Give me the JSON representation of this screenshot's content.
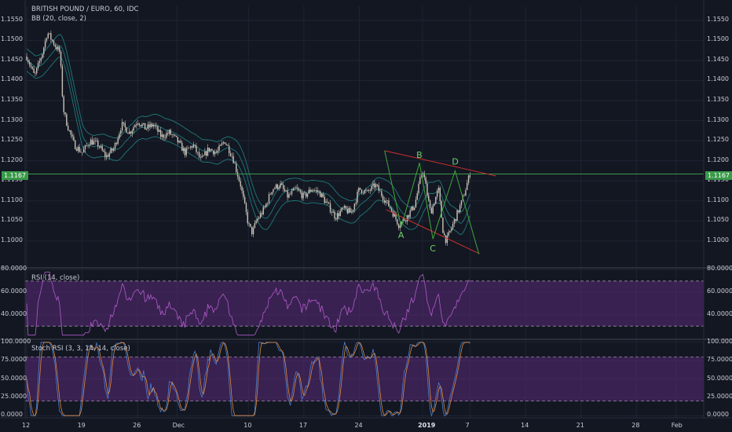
{
  "header": {
    "symbol": "BRITISH POUND / EURO, 60, IDC",
    "bb_indicator": "BB (20, close, 2)"
  },
  "current_price": "1.1167",
  "colors": {
    "background": "#131722",
    "grid": "#1f2433",
    "candle": "#c9c3b8",
    "bb_line": "#1f7a7a",
    "rsi_line": "#b05bc8",
    "rsi_band": "#5a2a78",
    "stoch_k": "#4a7fd0",
    "stoch_d": "#e08a3c",
    "channel": "#d0302c",
    "pattern": "#3fa83a",
    "price_line": "#3a9a4a",
    "pattern_label": "#6fd36a"
  },
  "chart_data": [
    {
      "type": "line",
      "name": "price",
      "y_ticks": [
        "1.1550",
        "1.1500",
        "1.1450",
        "1.1400",
        "1.1350",
        "1.1300",
        "1.1250",
        "1.1200",
        "1.1150",
        "1.1100",
        "1.1050",
        "1.1000"
      ],
      "y_tick_values": [
        1.155,
        1.15,
        1.145,
        1.14,
        1.135,
        1.13,
        1.125,
        1.12,
        1.115,
        1.11,
        1.105,
        1.1
      ],
      "ylim": [
        1.0935,
        1.1585
      ],
      "x_ticks": [
        "12",
        "19",
        "26",
        "Dec",
        "10",
        "17",
        "24",
        "2019",
        "7",
        "14",
        "21",
        "28",
        "Feb"
      ],
      "x_tick_days": [
        0,
        7,
        14,
        19,
        28,
        35,
        42,
        50,
        56,
        63,
        70,
        77,
        82
      ],
      "xlim": [
        -0.2,
        85.5
      ],
      "close_anchors": [
        [
          0,
          1.146
        ],
        [
          1,
          1.141
        ],
        [
          2,
          1.147
        ],
        [
          2.6,
          1.152
        ],
        [
          3.5,
          1.149
        ],
        [
          4.2,
          1.147
        ],
        [
          4.6,
          1.133
        ],
        [
          5.1,
          1.129
        ],
        [
          6,
          1.124
        ],
        [
          7,
          1.122
        ],
        [
          8,
          1.125
        ],
        [
          9,
          1.124
        ],
        [
          10,
          1.121
        ],
        [
          11,
          1.123
        ],
        [
          12,
          1.129
        ],
        [
          13,
          1.127
        ],
        [
          14,
          1.13
        ],
        [
          15,
          1.128
        ],
        [
          16,
          1.129
        ],
        [
          17,
          1.126
        ],
        [
          18,
          1.127
        ],
        [
          19,
          1.125
        ],
        [
          20,
          1.122
        ],
        [
          21,
          1.124
        ],
        [
          22,
          1.12
        ],
        [
          23,
          1.123
        ],
        [
          24,
          1.122
        ],
        [
          25,
          1.125
        ],
        [
          26,
          1.121
        ],
        [
          27,
          1.114
        ],
        [
          28,
          1.104
        ],
        [
          28.5,
          1.102
        ],
        [
          29,
          1.105
        ],
        [
          30,
          1.108
        ],
        [
          31,
          1.113
        ],
        [
          32,
          1.114
        ],
        [
          33,
          1.111
        ],
        [
          34,
          1.113
        ],
        [
          35,
          1.111
        ],
        [
          36,
          1.113
        ],
        [
          37,
          1.112
        ],
        [
          38,
          1.109
        ],
        [
          39,
          1.106
        ],
        [
          40,
          1.108
        ],
        [
          41,
          1.107
        ],
        [
          42,
          1.113
        ],
        [
          43,
          1.112
        ],
        [
          44,
          1.114
        ],
        [
          45,
          1.111
        ],
        [
          46,
          1.108
        ],
        [
          47,
          1.104
        ],
        [
          48,
          1.106
        ],
        [
          49,
          1.109
        ],
        [
          50,
          1.118
        ],
        [
          51,
          1.107
        ],
        [
          52,
          1.113
        ],
        [
          52.6,
          1.102
        ],
        [
          53,
          1.1
        ],
        [
          54,
          1.105
        ],
        [
          55,
          1.11
        ],
        [
          56,
          1.117
        ]
      ],
      "bb_spread": 0.0028
    },
    {
      "type": "line",
      "name": "rsi",
      "title": "RSI (14, close)",
      "y_ticks": [
        "80.0000",
        "60.0000",
        "40.0000"
      ],
      "y_tick_values": [
        80,
        60,
        40
      ],
      "ylim": [
        19,
        81
      ],
      "band": [
        30,
        70
      ]
    },
    {
      "type": "line",
      "name": "stoch_rsi",
      "title": "Stoch RSI (3, 3, 14, 14, close)",
      "y_ticks": [
        "100.0000",
        "75.0000",
        "50.0000",
        "25.0000",
        "0.0000"
      ],
      "y_tick_values": [
        100,
        75,
        50,
        25,
        0
      ],
      "ylim": [
        -3,
        103
      ],
      "band": [
        20,
        80
      ]
    }
  ],
  "annotations": {
    "labels": {
      "a": "A",
      "b": "B",
      "c": "C",
      "d": "D"
    },
    "pattern_points": [
      {
        "day": 45.2,
        "price": 1.1225
      },
      {
        "day": 47.3,
        "price": 1.1035
      },
      {
        "day": 49.6,
        "price": 1.1195
      },
      {
        "day": 51.3,
        "price": 1.1005
      },
      {
        "day": 54.1,
        "price": 1.1175
      },
      {
        "day": 57.1,
        "price": 1.0968
      }
    ],
    "channel_upper": [
      {
        "day": 45.2,
        "price": 1.1225
      },
      {
        "day": 59.3,
        "price": 1.1162
      }
    ],
    "channel_lower": [
      {
        "day": 45.4,
        "price": 1.1078
      },
      {
        "day": 57.2,
        "price": 1.0968
      }
    ]
  }
}
